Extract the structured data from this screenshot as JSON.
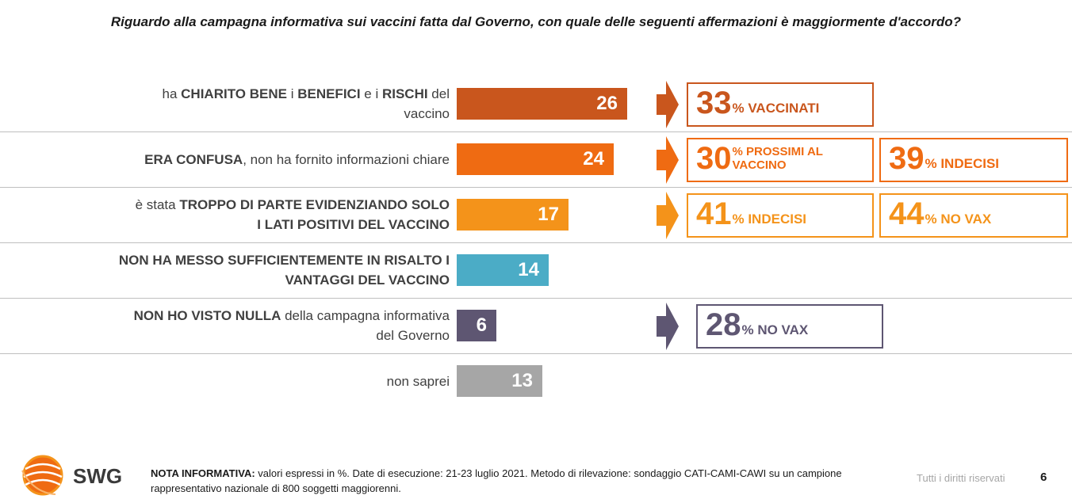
{
  "title": "Riguardo alla campagna informativa sui vaccini fatta dal Governo, con quale delle seguenti affermazioni è maggiormente d'accordo?",
  "chart_data": {
    "type": "bar",
    "orientation": "horizontal",
    "categories": [
      "ha CHIARITO BENE i BENEFICI e i RISCHI del vaccino",
      "ERA CONFUSA, non ha fornito informazioni chiare",
      "è stata TROPPO DI PARTE EVIDENZIANDO SOLO I LATI POSITIVI DEL VACCINO",
      "NON HA MESSO SUFFICIENTEMENTE IN RISALTO I VANTAGGI DEL VACCINO",
      "NON HO VISTO NULLA della campagna informativa del Governo",
      "non saprei"
    ],
    "values": [
      26,
      24,
      17,
      14,
      6,
      13
    ],
    "colors": [
      "#c9561d",
      "#ef6b12",
      "#f4931a",
      "#4bacc6",
      "#5e5672",
      "#a6a6a6"
    ],
    "xlim": [
      0,
      100
    ],
    "label_parts": [
      [
        [
          "ha ",
          false
        ],
        [
          "CHIARITO BENE",
          true
        ],
        [
          " i ",
          false
        ],
        [
          "BENEFICI",
          true
        ],
        [
          " e i ",
          false
        ],
        [
          "RISCHI",
          true
        ],
        [
          " del",
          false
        ],
        [
          "\n",
          false
        ],
        [
          "vaccino",
          false
        ]
      ],
      [
        [
          "ERA CONFUSA",
          true
        ],
        [
          ", non ha fornito informazioni chiare",
          false
        ]
      ],
      [
        [
          "è stata ",
          false
        ],
        [
          "TROPPO DI PARTE EVIDENZIANDO SOLO",
          true
        ],
        [
          "\n",
          false
        ],
        [
          "I LATI POSITIVI DEL VACCINO",
          true
        ]
      ],
      [
        [
          "NON HA MESSO SUFFICIENTEMENTE IN RISALTO I",
          true
        ],
        [
          "\n",
          false
        ],
        [
          "VANTAGGI DEL VACCINO",
          true
        ]
      ],
      [
        [
          "NON HO VISTO NULLA",
          true
        ],
        [
          " della campagna informativa",
          false
        ],
        [
          "\n",
          false
        ],
        [
          "del Governo",
          false
        ]
      ],
      [
        [
          "non saprei",
          false
        ]
      ]
    ],
    "callouts": [
      {
        "row": 0,
        "items": [
          {
            "value": "33",
            "label": "% VACCINATI",
            "color": "#c9561d"
          }
        ]
      },
      {
        "row": 1,
        "items": [
          {
            "value": "30",
            "label": "% PROSSIMI AL VACCINO",
            "color": "#ef6b12"
          },
          {
            "value": "39",
            "label": "% INDECISI",
            "color": "#ef6b12"
          }
        ]
      },
      {
        "row": 2,
        "items": [
          {
            "value": "41",
            "label": "% INDECISI",
            "color": "#f4931a"
          },
          {
            "value": "44",
            "label": "% NO VAX",
            "color": "#f4931a"
          }
        ]
      },
      {
        "row": 4,
        "items": [
          {
            "value": "28",
            "label": "% NO VAX",
            "color": "#5e5672"
          }
        ]
      }
    ]
  },
  "footer": {
    "note_label": "NOTA INFORMATIVA:",
    "note_text": " valori espressi in %. Date di esecuzione: 21-23  luglio 2021. Metodo di rilevazione: sondaggio CATI-CAMI-CAWI su un campione rappresentativo nazionale di 800 soggetti maggiorenni.",
    "rights": "Tutti i diritti riservati",
    "page_number": "6"
  },
  "logo": {
    "text": "SWG",
    "colors": [
      "#ef6b12",
      "#f4931a"
    ]
  }
}
